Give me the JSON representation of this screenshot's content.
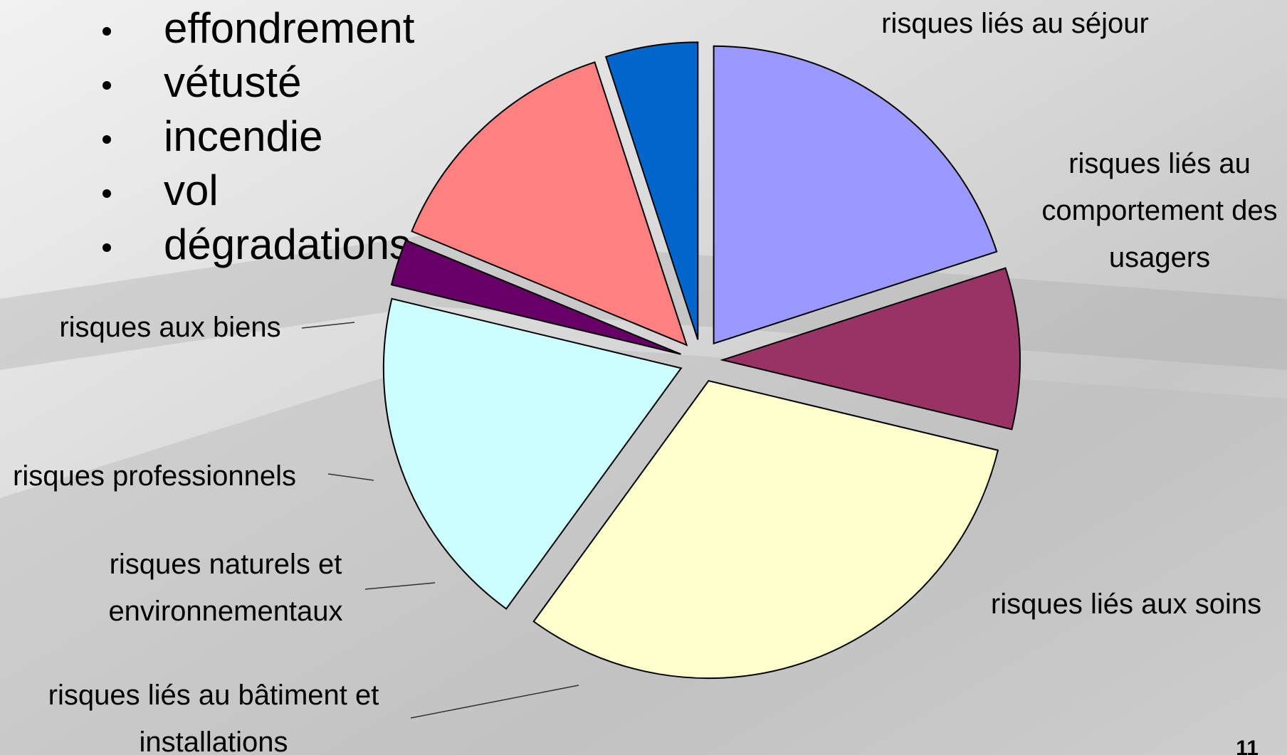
{
  "bullets": [
    "effondrement",
    "vétusté",
    "incendie",
    "vol",
    "dégradations"
  ],
  "page_number": "11",
  "chart_data": {
    "type": "pie",
    "categories": [
      "risques liés au séjour",
      "risques liés au\ncomportement des\nusagers",
      "risques liés aux soins",
      "risques liés au bâtiment et\ninstallations",
      "risques naturels et\nenvironnementaux",
      "risques professionnels",
      "risques aux biens"
    ],
    "values": [
      16,
      7,
      25,
      15,
      2,
      11,
      4
    ],
    "colors": [
      "#9999ff",
      "#993366",
      "#ffffcc",
      "#ccffff",
      "#660066",
      "#ff8080",
      "#0066cc"
    ]
  }
}
